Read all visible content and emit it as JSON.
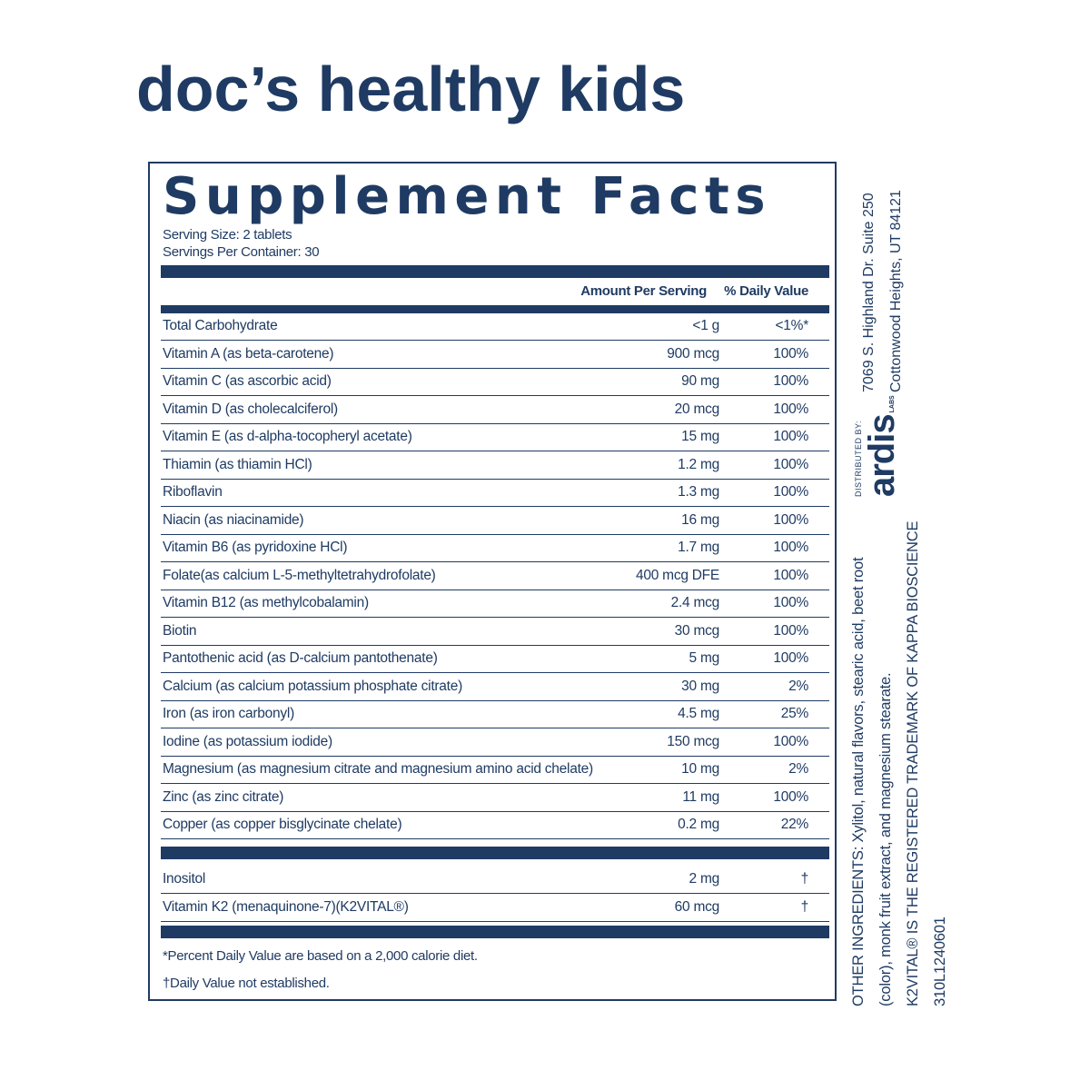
{
  "brand": "doc’s healthy kids",
  "panel": {
    "title": "Supplement Facts",
    "serving_size": "Serving Size: 2 tablets",
    "servings_per_container": "Servings Per Container: 30",
    "columns": [
      "Amount Per Serving",
      "% Daily Value"
    ],
    "rows": [
      [
        "Total Carbohydrate",
        "<1 g",
        "<1%*"
      ],
      [
        "Vitamin A (as beta-carotene)",
        "900 mcg",
        "100%"
      ],
      [
        "Vitamin C (as ascorbic acid)",
        "90 mg",
        "100%"
      ],
      [
        "Vitamin D (as cholecalciferol)",
        "20 mcg",
        "100%"
      ],
      [
        "Vitamin E (as d-alpha-tocopheryl acetate)",
        "15 mg",
        "100%"
      ],
      [
        "Thiamin (as thiamin HCl)",
        "1.2 mg",
        "100%"
      ],
      [
        "Riboflavin",
        "1.3 mg",
        "100%"
      ],
      [
        "Niacin (as niacinamide)",
        "16 mg",
        "100%"
      ],
      [
        "Vitamin B6 (as pyridoxine HCl)",
        "1.7 mg",
        "100%"
      ],
      [
        "Folate(as calcium L-5-methyltetrahydrofolate)",
        "400 mcg DFE",
        "100%"
      ],
      [
        "Vitamin B12 (as methylcobalamin)",
        "2.4 mcg",
        "100%"
      ],
      [
        "Biotin",
        "30 mcg",
        "100%"
      ],
      [
        "Pantothenic acid (as D-calcium pantothenate)",
        "5 mg",
        "100%"
      ],
      [
        "Calcium (as calcium potassium phosphate citrate)",
        "30 mg",
        "2%"
      ],
      [
        "Iron (as iron carbonyl)",
        "4.5 mg",
        "25%"
      ],
      [
        "Iodine (as potassium iodide)",
        "150 mcg",
        "100%"
      ],
      [
        "Magnesium (as magnesium citrate and magnesium amino acid chelate)",
        "10 mg",
        "2%"
      ],
      [
        "Zinc (as zinc citrate)",
        "11 mg",
        "100%"
      ],
      [
        "Copper (as copper bisglycinate chelate)",
        "0.2 mg",
        "22%"
      ]
    ],
    "other_rows": [
      [
        "Inositol",
        "2 mg",
        "†"
      ],
      [
        "Vitamin K2 (menaquinone-7)(K2VITAL®)",
        "60 mcg",
        "†"
      ]
    ],
    "footnotes": [
      "*Percent Daily Value are based on a 2,000 calorie diet.",
      "†Daily Value not established."
    ]
  },
  "side": {
    "ingredients": [
      "OTHER INGREDIENTS: Xylitol, natural flavors, stearic acid, beet root",
      "(color), monk fruit extract, and magnesium stearate.",
      "K2VITAL® IS THE REGISTERED TRADEMARK OF KAPPA BIOSCIENCE",
      "310L1240601"
    ],
    "distributor": {
      "label": "DISTRIBUTED BY:",
      "logo": "ardis",
      "logo_sub": "LABS",
      "address": [
        "7069 S. Highland Dr. Suite 250",
        "Cottonwood Heights, UT 84121"
      ]
    }
  }
}
